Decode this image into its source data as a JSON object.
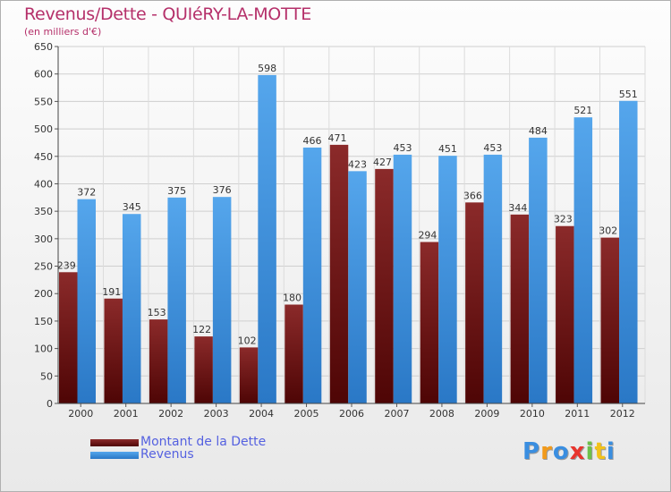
{
  "title": "Revenus/Dette - QUIéRY-LA-MOTTE",
  "subtitle": "(en milliers d'€)",
  "logo": {
    "text": "Proxiti"
  },
  "colors": {
    "dette": "#6b0b0b",
    "revenus": "#3d8fd8",
    "title": "#b5306a",
    "legend_text": "#5561e0",
    "logo": [
      "#3a8ee0",
      "#f29a1a",
      "#3a8ee0",
      "#e8352e",
      "#6cc04a",
      "#f2c21a",
      "#3a8ee0"
    ]
  },
  "chart_data": {
    "type": "bar",
    "categories": [
      "2000",
      "2001",
      "2002",
      "2003",
      "2004",
      "2005",
      "2006",
      "2007",
      "2008",
      "2009",
      "2010",
      "2011",
      "2012"
    ],
    "series": [
      {
        "name": "Montant de la Dette",
        "values": [
          239,
          191,
          153,
          122,
          102,
          180,
          471,
          427,
          294,
          366,
          344,
          323,
          302
        ]
      },
      {
        "name": "Revenus",
        "values": [
          372,
          345,
          375,
          376,
          598,
          466,
          423,
          453,
          451,
          453,
          484,
          521,
          551
        ]
      }
    ],
    "ylim": [
      0,
      650
    ],
    "yticks": [
      "0",
      "50",
      "100",
      "150",
      "200",
      "250",
      "300",
      "350",
      "400",
      "450",
      "500",
      "550",
      "600",
      "650"
    ],
    "grid": true,
    "legend_position": "bottom-left"
  }
}
